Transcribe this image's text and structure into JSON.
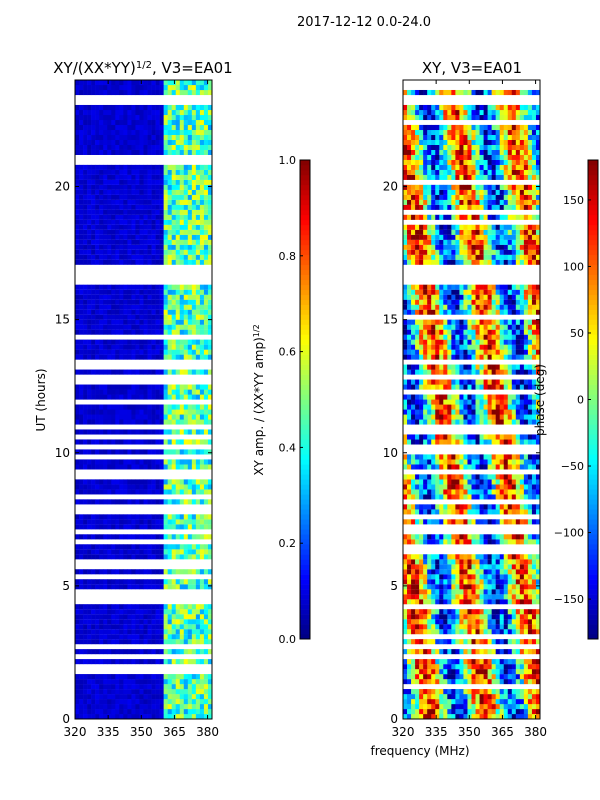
{
  "figure_title": "2017-12-12 0.0-24.0",
  "shared_xlabel": "frequency (MHz)",
  "chart_data": [
    {
      "type": "heatmap",
      "title_main": "XY/(XX*YY)",
      "title_sup": "1/2",
      "title_tail": ", V3=EA01",
      "xlabel": "",
      "ylabel": "UT (hours)",
      "xlim": [
        320,
        382
      ],
      "ylim": [
        0,
        24
      ],
      "x_ticks": [
        320,
        335,
        350,
        365,
        380
      ],
      "y_ticks": [
        0,
        5,
        10,
        15,
        20
      ],
      "colorbar": {
        "label_main": "XY amp. / (XX*YY amp)",
        "label_sup": "1/2",
        "range": [
          0.0,
          1.0
        ],
        "ticks": [
          "0.0",
          "0.2",
          "0.4",
          "0.6",
          "0.8",
          "1.0"
        ],
        "tick_values": [
          0.0,
          0.2,
          0.4,
          0.6,
          0.8,
          1.0
        ],
        "colormap": "jet"
      },
      "data_description_bands": [
        {
          "freq_range": [
            320,
            360
          ],
          "typical_value": 0.08
        },
        {
          "freq_range": [
            360,
            382
          ],
          "typical_value": 0.45
        }
      ],
      "gaps_hours": [
        [
          16.3,
          17.0
        ],
        [
          23.1,
          23.4
        ],
        [
          13.3,
          13.5
        ]
      ]
    },
    {
      "type": "heatmap",
      "title_main": "XY, V3=EA01",
      "xlabel": "frequency (MHz)",
      "ylabel": "",
      "xlim": [
        320,
        382
      ],
      "ylim": [
        0,
        24
      ],
      "x_ticks": [
        320,
        335,
        350,
        365,
        380
      ],
      "y_ticks": [
        0,
        5,
        10,
        15,
        20
      ],
      "colorbar": {
        "label_main": "phase (deg)",
        "range": [
          -180,
          180
        ],
        "ticks": [
          "−150",
          "−100",
          "−50",
          "0",
          "50",
          "100",
          "150"
        ],
        "tick_values": [
          -150,
          -100,
          -50,
          0,
          50,
          100,
          150
        ],
        "colormap": "jet"
      },
      "gaps_hours": [
        [
          16.3,
          17.0
        ],
        [
          23.1,
          23.4
        ],
        [
          13.3,
          13.5
        ]
      ]
    }
  ],
  "colors": {
    "jet_low": "#00007f",
    "jet_high": "#7f0000",
    "background": "#ffffff"
  }
}
